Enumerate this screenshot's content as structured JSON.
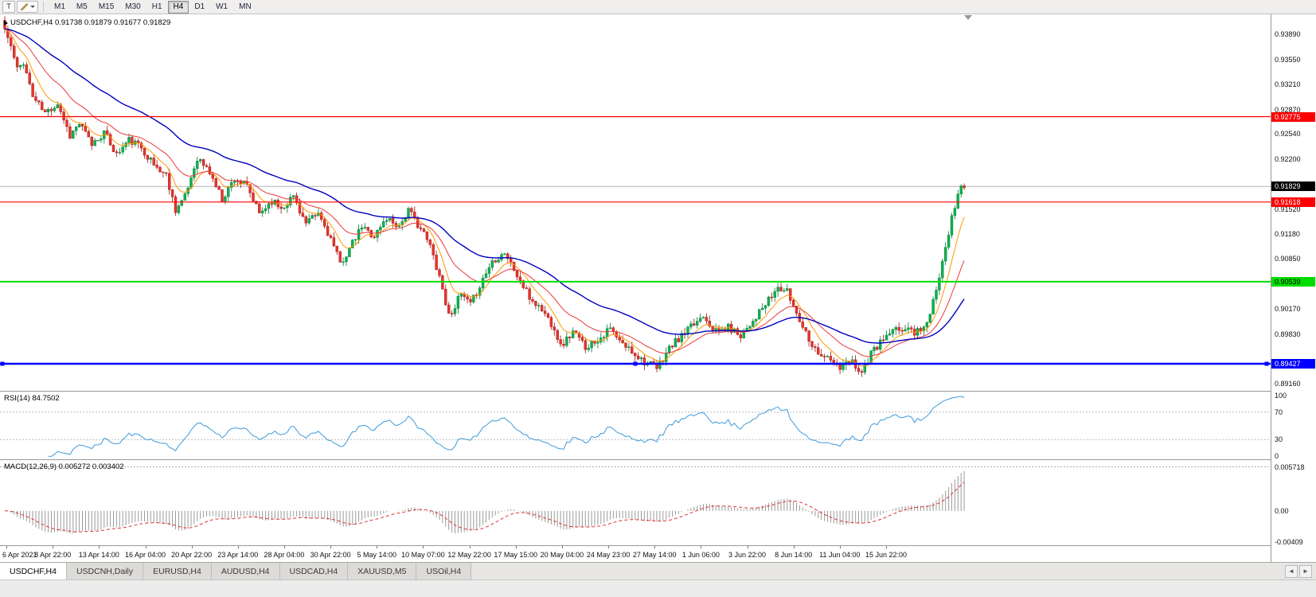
{
  "toolbar": {
    "t_button": "T",
    "timeframes": [
      "M1",
      "M5",
      "M15",
      "M30",
      "H1",
      "H4",
      "D1",
      "W1",
      "MN"
    ],
    "active_timeframe": "H4"
  },
  "chart": {
    "title": "USDCHF,H4 0.91738 0.91879 0.91677 0.91829",
    "symbol": "USDCHF",
    "period": "H4",
    "open": "0.91738",
    "high": "0.91879",
    "low": "0.91677",
    "close": "0.91829",
    "current_price": "0.91829",
    "price_axis": [
      "0.93890",
      "0.93550",
      "0.93210",
      "0.92870",
      "0.92540",
      "0.92200",
      "0.91860",
      "0.91520",
      "0.91180",
      "0.90850",
      "0.90510",
      "0.90170",
      "0.89830",
      "0.89490",
      "0.89160"
    ],
    "time_axis": [
      "6 Apr 2021",
      "8 Apr 22:00",
      "13 Apr 14:00",
      "16 Apr 04:00",
      "20 Apr 22:00",
      "23 Apr 14:00",
      "28 Apr 04:00",
      "30 Apr 22:00",
      "5 May 14:00",
      "10 May 07:00",
      "12 May 22:00",
      "17 May 15:00",
      "20 May 04:00",
      "24 May 23:00",
      "27 May 14:00",
      "1 Jun 06:00",
      "3 Jun 22:00",
      "8 Jun 14:00",
      "11 Jun 04:00",
      "15 Jun 22:00"
    ]
  },
  "rsi": {
    "label": "RSI(14) 84.7502",
    "value": "84.7502"
  },
  "macd": {
    "label": "MACD(12,26,9) 0.005272 0.003402",
    "main": "0.005272",
    "signal": "0.003402"
  },
  "tabs": {
    "items": [
      "USDCHF,H4",
      "USDCNH,Daily",
      "EURUSD,H4",
      "AUDUSD,H4",
      "USDCAD,H4",
      "XAUUSD,M5",
      "USOil,H4"
    ],
    "active": "USDCHF,H4",
    "nav_arrows": [
      "◄",
      "►"
    ]
  },
  "colors": {
    "candle_up": "#0FB050",
    "candle_up_edge": "#077A36",
    "candle_down": "#E8342C",
    "candle_down_edge": "#9C1410",
    "bid_line": "#B4B4B4",
    "rsi_line": "#3C9BDC",
    "macd_histogram": "#9A9A9A",
    "macd_signal": "#E03030",
    "level_red": "#FF0000",
    "level_green": "#00DE00",
    "level_blue": "#0000FF"
  },
  "chart_data": {
    "type": "candlestick",
    "symbol": "USDCHF",
    "timeframe": "H4",
    "ohlc_display": {
      "open": 0.91738,
      "high": 0.91879,
      "low": 0.91677,
      "close": 0.91829
    },
    "bid_price": 0.91829,
    "price_range": {
      "top": 0.9416,
      "bottom": 0.8905
    },
    "price_axis_ticks": [
      0.9389,
      0.9355,
      0.9321,
      0.9287,
      0.9254,
      0.922,
      0.9186,
      0.9152,
      0.9118,
      0.9085,
      0.9051,
      0.9017,
      0.8983,
      0.8949,
      0.8916
    ],
    "num_candles": 310,
    "noise_seed": 11,
    "noise_amp": 0.00052,
    "wick_amp": 0.00075,
    "close_anchors": [
      [
        0,
        0.9396
      ],
      [
        2,
        0.9372
      ],
      [
        4,
        0.9341
      ],
      [
        6,
        0.9352
      ],
      [
        9,
        0.9305
      ],
      [
        13,
        0.9282
      ],
      [
        17,
        0.9296
      ],
      [
        21,
        0.9252
      ],
      [
        24,
        0.9268
      ],
      [
        28,
        0.924
      ],
      [
        32,
        0.9256
      ],
      [
        36,
        0.9226
      ],
      [
        40,
        0.9246
      ],
      [
        44,
        0.9236
      ],
      [
        48,
        0.9212
      ],
      [
        52,
        0.9198
      ],
      [
        55,
        0.9152
      ],
      [
        58,
        0.9168
      ],
      [
        62,
        0.9222
      ],
      [
        66,
        0.9202
      ],
      [
        70,
        0.9166
      ],
      [
        74,
        0.9194
      ],
      [
        78,
        0.9182
      ],
      [
        82,
        0.9146
      ],
      [
        86,
        0.9164
      ],
      [
        89,
        0.9154
      ],
      [
        93,
        0.917
      ],
      [
        97,
        0.9132
      ],
      [
        101,
        0.9146
      ],
      [
        105,
        0.9112
      ],
      [
        108,
        0.9078
      ],
      [
        111,
        0.9098
      ],
      [
        115,
        0.9128
      ],
      [
        119,
        0.9116
      ],
      [
        123,
        0.914
      ],
      [
        127,
        0.913
      ],
      [
        130,
        0.915
      ],
      [
        134,
        0.9126
      ],
      [
        137,
        0.9102
      ],
      [
        140,
        0.9062
      ],
      [
        143,
        0.9008
      ],
      [
        147,
        0.9036
      ],
      [
        150,
        0.9022
      ],
      [
        154,
        0.9058
      ],
      [
        157,
        0.9082
      ],
      [
        161,
        0.9094
      ],
      [
        165,
        0.9062
      ],
      [
        169,
        0.9032
      ],
      [
        173,
        0.9016
      ],
      [
        177,
        0.8992
      ],
      [
        179,
        0.8966
      ],
      [
        183,
        0.8986
      ],
      [
        187,
        0.8966
      ],
      [
        191,
        0.8976
      ],
      [
        195,
        0.899
      ],
      [
        198,
        0.8972
      ],
      [
        202,
        0.896
      ],
      [
        206,
        0.8946
      ],
      [
        210,
        0.8936
      ],
      [
        214,
        0.8964
      ],
      [
        218,
        0.898
      ],
      [
        222,
        0.8996
      ],
      [
        225,
        0.901
      ],
      [
        229,
        0.8986
      ],
      [
        233,
        0.8992
      ],
      [
        237,
        0.8982
      ],
      [
        241,
        0.9002
      ],
      [
        245,
        0.9022
      ],
      [
        249,
        0.9046
      ],
      [
        252,
        0.904
      ],
      [
        255,
        0.9012
      ],
      [
        258,
        0.8986
      ],
      [
        261,
        0.8962
      ],
      [
        265,
        0.895
      ],
      [
        269,
        0.8936
      ],
      [
        273,
        0.8946
      ],
      [
        276,
        0.8931
      ],
      [
        279,
        0.8956
      ],
      [
        283,
        0.8976
      ],
      [
        286,
        0.8986
      ],
      [
        290,
        0.8991
      ],
      [
        293,
        0.8986
      ],
      [
        297,
        0.8996
      ],
      [
        300,
        0.904
      ],
      [
        302,
        0.9086
      ],
      [
        304,
        0.9122
      ],
      [
        306,
        0.9156
      ],
      [
        308,
        0.9186
      ],
      [
        309,
        0.9183
      ]
    ],
    "moving_averages": [
      {
        "name": "fast",
        "type": "ema",
        "period": 8,
        "color": "#FF9900",
        "width": 1
      },
      {
        "name": "medium",
        "type": "ema",
        "period": 20,
        "color": "#E83A3A",
        "width": 1
      },
      {
        "name": "slow",
        "type": "ema",
        "period": 50,
        "color": "#0000BE",
        "width": 1.4
      }
    ],
    "horizontal_levels": [
      {
        "price": "0.92775",
        "value": 0.92775,
        "color": "#FF0000",
        "width": 1.2,
        "text_color": "#FFFFFF"
      },
      {
        "price": "0.91618",
        "value": 0.91618,
        "color": "#FF0000",
        "width": 1.2,
        "text_color": "#FFFFFF"
      },
      {
        "price": "0.90539",
        "value": 0.90539,
        "color": "#00DE00",
        "width": 2,
        "text_color": "#000000"
      },
      {
        "price": "0.89427",
        "value": 0.89427,
        "color": "#0000FF",
        "width": 2.4,
        "text_color": "#FFFFFF",
        "handles": true
      }
    ],
    "indicators": {
      "rsi": {
        "period": 14,
        "current": 84.7502,
        "levels": [
          70,
          30
        ],
        "scale": [
          100,
          70,
          30,
          0
        ]
      },
      "macd": {
        "fast": 12,
        "slow": 26,
        "signal": 9,
        "main": 0.005272,
        "signal_value": 0.003402,
        "scale_max": 0.005718,
        "scale_min": -0.00409,
        "scale_labels": [
          "0.005718",
          "0.00",
          "-0.00409"
        ]
      }
    }
  }
}
